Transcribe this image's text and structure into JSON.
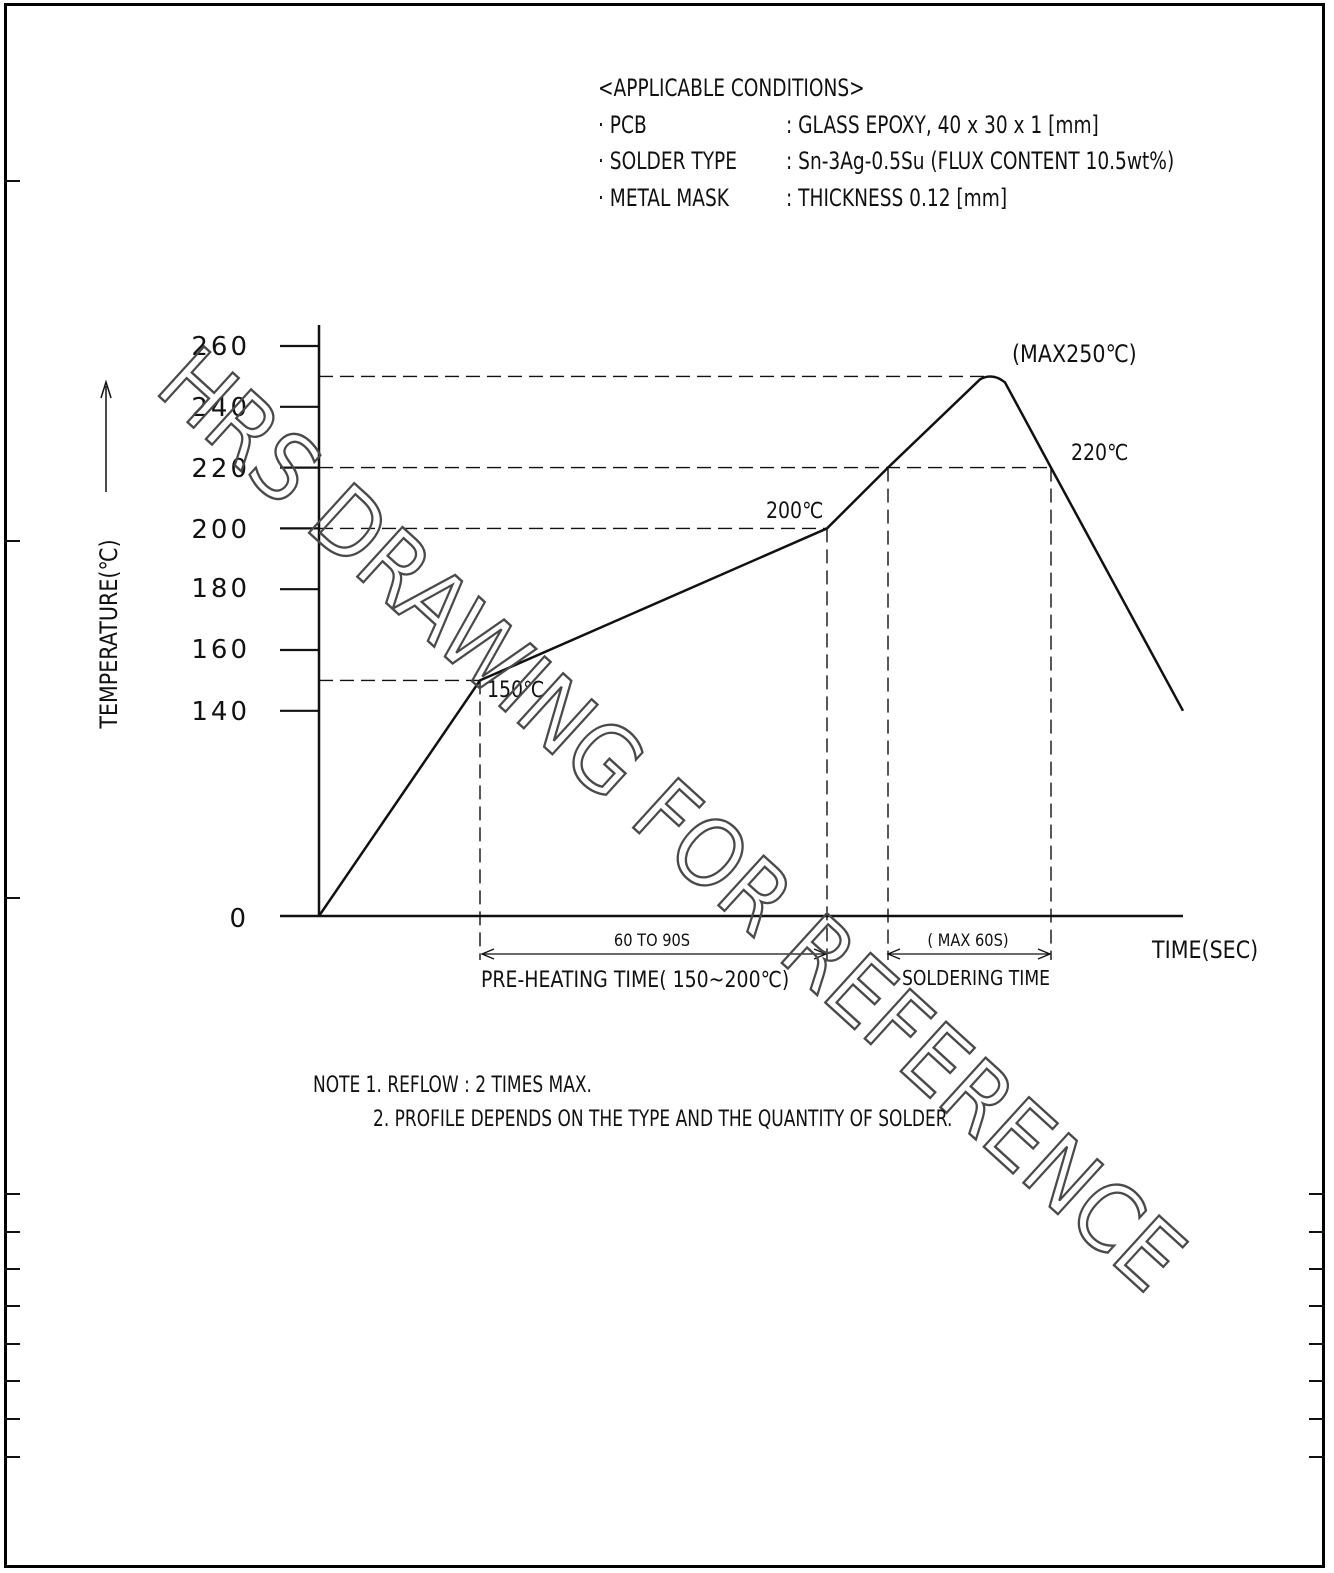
{
  "conditions": {
    "heading": "<APPLICABLE CONDITIONS>",
    "rows": [
      {
        "label": "· PCB",
        "value": ": GLASS EPOXY, 40 x 30 x 1 [mm]"
      },
      {
        "label": "· SOLDER TYPE",
        "value": ": Sn-3Ag-0.5Su (FLUX CONTENT 10.5wt%)"
      },
      {
        "label": "· METAL MASK",
        "value": ": THICKNESS 0.12 [mm]"
      }
    ]
  },
  "chart_data": {
    "type": "line",
    "ylabel": "TEMPERATURE(℃)",
    "xlabel": "TIME(SEC)",
    "y_ticks": [
      "260",
      "240",
      "220",
      "200",
      "180",
      "160",
      "140",
      "0"
    ],
    "profile_temperatures_c": [
      0,
      150,
      200,
      220,
      250,
      250,
      220,
      140
    ],
    "profile_stages": [
      "start",
      "preheat start",
      "preheat end",
      "reflow 220℃",
      "peak",
      "peak",
      "cooling 220℃",
      "end"
    ],
    "point_labels": [
      "150℃",
      "200℃",
      "(MAX250℃)",
      "220℃"
    ],
    "reference_levels_c": [
      250,
      220,
      200,
      150
    ],
    "intervals": [
      {
        "duration": "60 TO 90S",
        "name": "PRE-HEATING TIME( 150~200℃)"
      },
      {
        "duration": "( MAX  60S)",
        "name": "SOLDERING TIME"
      }
    ]
  },
  "notes": [
    "NOTE 1. REFLOW : 2 TIMES MAX.",
    "2. PROFILE DEPENDS ON THE TYPE AND THE QUANTITY OF SOLDER."
  ],
  "watermark": "HRS DRAWING FOR REFERENCE",
  "colors": {
    "ink": "#111111",
    "watermark": "#5a5a5a"
  }
}
